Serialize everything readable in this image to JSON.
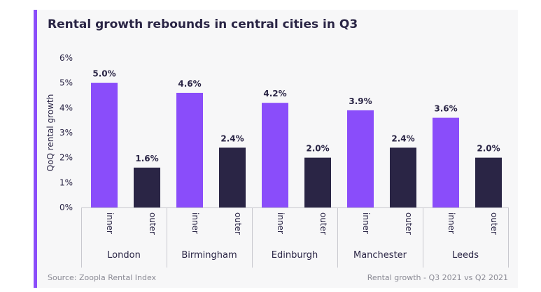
{
  "chart_data": {
    "type": "bar",
    "title": "Rental growth rebounds in central cities in Q3",
    "ylabel": "QoQ rental growth",
    "ylim": [
      0,
      6
    ],
    "yticks": [
      "0%",
      "1%",
      "2%",
      "3%",
      "4%",
      "5%",
      "6%"
    ],
    "grid": false,
    "categories": [
      "London",
      "Birmingham",
      "Edinburgh",
      "Manchester",
      "Leeds"
    ],
    "subcategories": [
      "inner",
      "outer"
    ],
    "series": [
      {
        "values": [
          5.0,
          4.6,
          4.2,
          3.9,
          3.6
        ],
        "labels": [
          "5.0%",
          "4.6%",
          "4.2%",
          "3.9%",
          "3.6%"
        ],
        "color": "#8a4dfa"
      },
      {
        "values": [
          1.6,
          2.4,
          2.0,
          2.4,
          2.0
        ],
        "labels": [
          "1.6%",
          "2.4%",
          "2.0%",
          "2.4%",
          "2.0%"
        ],
        "color": "#2a2545"
      }
    ]
  },
  "colors": {
    "accent": "#8a4dfa",
    "text": "#2a2545",
    "muted": "#8a8a94"
  },
  "source": "Source: Zoopla Rental Index",
  "footnote": "Rental growth - Q3 2021 vs Q2 2021"
}
